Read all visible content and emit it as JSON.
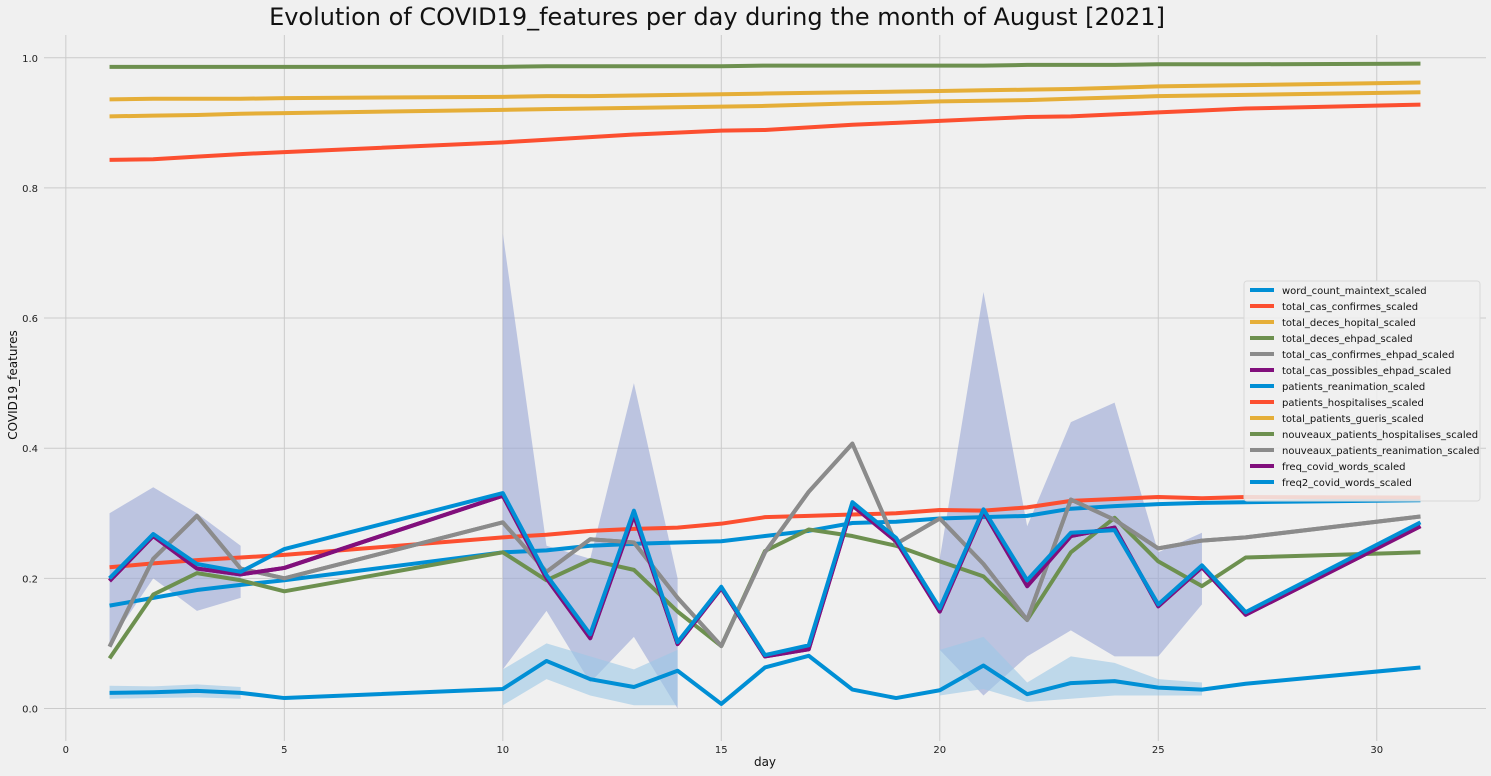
{
  "chart_data": {
    "type": "line",
    "title": "Evolution of COVID19_features per day during the month of August [2021]",
    "xlabel": "day",
    "ylabel": "COVID19_features",
    "xlim": [
      -0.5,
      32.5
    ],
    "ylim": [
      -0.05,
      1.035
    ],
    "xticks": [
      0,
      5,
      10,
      15,
      20,
      25,
      30
    ],
    "yticks": [
      0.0,
      0.2,
      0.4,
      0.6,
      0.8,
      1.0
    ],
    "grid": true,
    "legend_position": "center-right",
    "bands": [
      {
        "name": "confidence-band-upper",
        "color": "#9aa6d6",
        "x": [
          1,
          2,
          3,
          4,
          null,
          10,
          11,
          12,
          13,
          14,
          null,
          20,
          21,
          22,
          23,
          24,
          25,
          26
        ],
        "upper": [
          0.3,
          0.34,
          0.3,
          0.25,
          null,
          0.73,
          0.25,
          0.23,
          0.5,
          0.2,
          null,
          0.23,
          0.64,
          0.28,
          0.44,
          0.47,
          0.24,
          0.27
        ],
        "lower": [
          0.1,
          0.2,
          0.15,
          0.17,
          null,
          0.06,
          0.15,
          0.04,
          0.11,
          0.0,
          null,
          0.09,
          0.02,
          0.08,
          0.12,
          0.08,
          0.08,
          0.16
        ]
      },
      {
        "name": "confidence-band-lower",
        "color": "#9cc8e6",
        "x": [
          1,
          2,
          3,
          4,
          null,
          10,
          11,
          12,
          13,
          14,
          null,
          20,
          21,
          22,
          23,
          24,
          25,
          26
        ],
        "upper": [
          0.035,
          0.034,
          0.037,
          0.033,
          null,
          0.06,
          0.1,
          0.08,
          0.06,
          0.09,
          null,
          0.09,
          0.11,
          0.04,
          0.08,
          0.07,
          0.045,
          0.04
        ],
        "lower": [
          0.015,
          0.016,
          0.017,
          0.015,
          null,
          0.005,
          0.045,
          0.02,
          0.005,
          0.005,
          null,
          0.02,
          0.03,
          0.01,
          0.015,
          0.02,
          0.02,
          0.02
        ]
      }
    ],
    "x": [
      1,
      2,
      3,
      4,
      5,
      10,
      11,
      12,
      13,
      14,
      15,
      16,
      17,
      18,
      19,
      20,
      21,
      22,
      23,
      24,
      25,
      26,
      27,
      31
    ],
    "series": [
      {
        "name": "word_count_maintext_scaled",
        "color": "#008fd5",
        "values": [
          0.024,
          0.025,
          0.027,
          0.024,
          0.016,
          0.03,
          0.073,
          0.045,
          0.033,
          0.058,
          0.007,
          0.063,
          0.081,
          0.029,
          0.016,
          0.028,
          0.066,
          0.022,
          0.039,
          0.042,
          0.032,
          0.029,
          0.038,
          0.063
        ]
      },
      {
        "name": "total_cas_confirmes_scaled",
        "color": "#fc4f30",
        "values": [
          0.843,
          0.844,
          0.848,
          0.852,
          0.855,
          0.87,
          0.874,
          0.878,
          0.882,
          0.885,
          0.888,
          0.889,
          0.893,
          0.897,
          0.9,
          0.903,
          0.906,
          0.909,
          0.91,
          0.913,
          0.916,
          0.919,
          0.922,
          0.928
        ]
      },
      {
        "name": "total_deces_hopital_scaled",
        "color": "#e5ae38",
        "values": [
          0.936,
          0.937,
          0.937,
          0.937,
          0.938,
          0.94,
          0.941,
          0.941,
          0.942,
          0.943,
          0.944,
          0.945,
          0.946,
          0.947,
          0.948,
          0.949,
          0.95,
          0.951,
          0.952,
          0.954,
          0.956,
          0.957,
          0.958,
          0.962
        ]
      },
      {
        "name": "total_deces_ehpad_scaled",
        "color": "#6d904f",
        "values": [
          0.986,
          0.986,
          0.986,
          0.986,
          0.986,
          0.986,
          0.987,
          0.987,
          0.987,
          0.987,
          0.987,
          0.988,
          0.988,
          0.988,
          0.988,
          0.988,
          0.988,
          0.989,
          0.989,
          0.989,
          0.99,
          0.99,
          0.99,
          0.991
        ]
      },
      {
        "name": "total_cas_confirmes_ehpad_scaled",
        "color": "#8b8b8b",
        "values": [
          0.095,
          0.23,
          0.296,
          0.215,
          0.2,
          0.286,
          0.21,
          0.26,
          0.255,
          0.17,
          0.096,
          0.24,
          0.333,
          0.407,
          0.253,
          0.292,
          0.222,
          0.136,
          0.321,
          0.29,
          0.246,
          0.258,
          0.263,
          0.295
        ]
      },
      {
        "name": "total_cas_possibles_ehpad_scaled",
        "color": "#810f7c",
        "values": [
          0.196,
          0.265,
          0.215,
          0.206,
          0.216,
          0.327,
          0.2,
          0.108,
          0.297,
          0.099,
          0.185,
          0.08,
          0.091,
          0.312,
          0.257,
          0.149,
          0.303,
          0.188,
          0.265,
          0.278,
          0.157,
          0.217,
          0.144,
          0.28
        ]
      },
      {
        "name": "patients_reanimation_scaled",
        "color": "#008fd5",
        "values": [
          0.158,
          0.17,
          0.182,
          0.19,
          0.197,
          0.24,
          0.243,
          0.25,
          0.253,
          0.255,
          0.257,
          0.265,
          0.273,
          0.285,
          0.287,
          0.292,
          0.294,
          0.296,
          0.307,
          0.311,
          0.314,
          0.316,
          0.317,
          0.32
        ]
      },
      {
        "name": "patients_hospitalises_scaled",
        "color": "#fc4f30",
        "values": [
          0.217,
          0.223,
          0.228,
          0.232,
          0.236,
          0.263,
          0.267,
          0.273,
          0.276,
          0.278,
          0.284,
          0.294,
          0.296,
          0.298,
          0.3,
          0.305,
          0.304,
          0.309,
          0.319,
          0.322,
          0.325,
          0.323,
          0.325,
          0.324
        ]
      },
      {
        "name": "total_patients_gueris_scaled",
        "color": "#e5ae38",
        "values": [
          0.91,
          0.911,
          0.912,
          0.914,
          0.915,
          0.92,
          0.921,
          0.922,
          0.923,
          0.924,
          0.925,
          0.926,
          0.928,
          0.93,
          0.931,
          0.933,
          0.934,
          0.935,
          0.937,
          0.939,
          0.941,
          0.942,
          0.943,
          0.947
        ]
      },
      {
        "name": "nouveaux_patients_hospitalises_scaled",
        "color": "#6d904f",
        "values": [
          0.077,
          0.175,
          0.208,
          0.197,
          0.18,
          0.24,
          0.197,
          0.228,
          0.213,
          0.149,
          0.096,
          0.242,
          0.275,
          0.265,
          0.25,
          0.226,
          0.203,
          0.136,
          0.24,
          0.293,
          0.226,
          0.188,
          0.232,
          0.24
        ]
      },
      {
        "name": "nouveaux_patients_reanimation_scaled",
        "color": "#8b8b8b",
        "values": [
          0.095,
          0.23,
          0.296,
          0.215,
          0.2,
          0.286,
          0.21,
          0.26,
          0.255,
          0.17,
          0.096,
          0.24,
          0.333,
          0.407,
          0.253,
          0.292,
          0.222,
          0.136,
          0.321,
          0.29,
          0.246,
          0.258,
          0.263,
          0.295
        ]
      },
      {
        "name": "freq_covid_words_scaled",
        "color": "#810f7c",
        "values": [
          0.196,
          0.265,
          0.215,
          0.206,
          0.216,
          0.327,
          0.2,
          0.108,
          0.297,
          0.099,
          0.185,
          0.08,
          0.091,
          0.312,
          0.257,
          0.149,
          0.303,
          0.188,
          0.265,
          0.278,
          0.157,
          0.217,
          0.144,
          0.28
        ]
      },
      {
        "name": "freq2_covid_words_scaled",
        "color": "#008fd5",
        "values": [
          0.2,
          0.268,
          0.222,
          0.21,
          0.245,
          0.331,
          0.205,
          0.114,
          0.304,
          0.102,
          0.187,
          0.082,
          0.097,
          0.317,
          0.262,
          0.154,
          0.306,
          0.197,
          0.27,
          0.274,
          0.16,
          0.22,
          0.148,
          0.286
        ]
      }
    ]
  }
}
